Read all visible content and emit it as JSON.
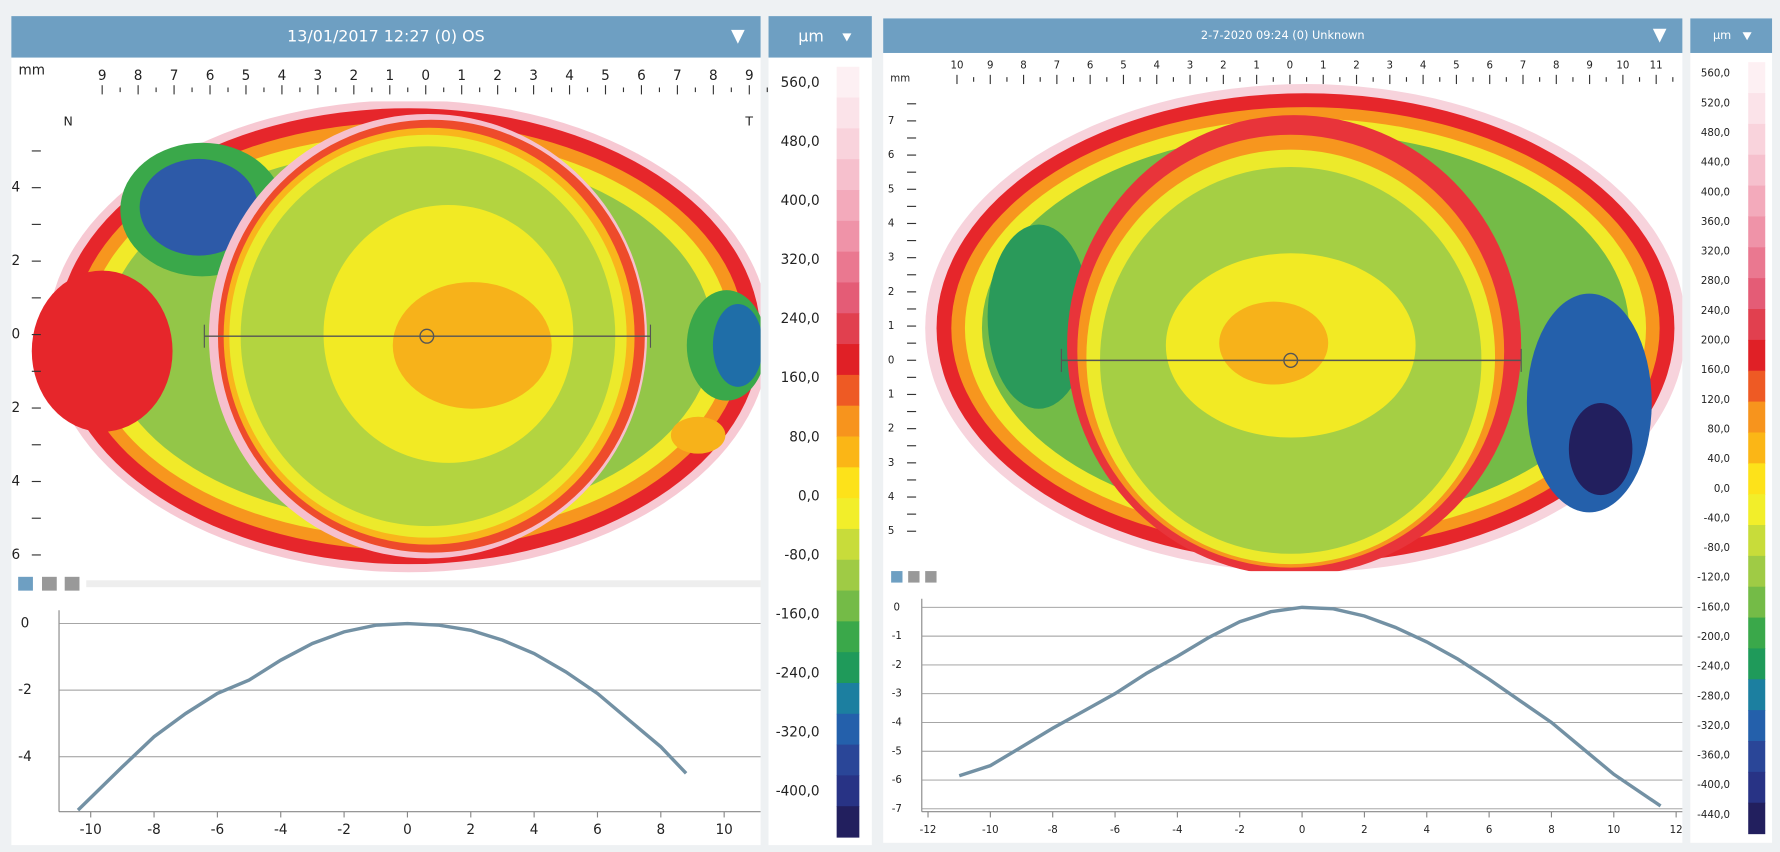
{
  "scale_colors": [
    "#fdf0f3",
    "#fbe3e9",
    "#f9d3dc",
    "#f6c0cd",
    "#f3aabb",
    "#ef93a8",
    "#ea7890",
    "#e45c76",
    "#e1404f",
    "#e02026",
    "#ee5a24",
    "#f7941d",
    "#fbb616",
    "#fde21a",
    "#f2ee2a",
    "#c8dc3a",
    "#9fcb45",
    "#74bb47",
    "#3aa84a",
    "#1f9a5a",
    "#1c7fa0",
    "#2460ab",
    "#2a4698",
    "#283385",
    "#221f5e"
  ],
  "panels": [
    {
      "title": "13/01/2017 12:27 (0) OS",
      "unit": "µm",
      "ruler_unit": "mm",
      "ruler_x": [
        "9",
        "8",
        "7",
        "6",
        "5",
        "4",
        "3",
        "2",
        "1",
        "0",
        "1",
        "2",
        "3",
        "4",
        "5",
        "6",
        "7",
        "8",
        "9"
      ],
      "ruler_y": [
        "4",
        "2",
        "0",
        "2",
        "4",
        "6"
      ],
      "side_labels": [
        "N",
        "T"
      ],
      "scale_labels": [
        "560,0",
        "480,0",
        "400,0",
        "320,0",
        "240,0",
        "160,0",
        "80,0",
        "0,0",
        "-80,0",
        "-160,0",
        "-240,0",
        "-320,0",
        "-400,0"
      ],
      "profile": {
        "type": "line",
        "x": [
          -10.4,
          -9,
          -8,
          -7,
          -6,
          -5,
          -4,
          -3,
          -2,
          -1,
          0,
          1,
          2,
          3,
          4,
          5,
          6,
          7,
          8,
          8.8
        ],
        "values": [
          -5.6,
          -4.3,
          -3.4,
          -2.7,
          -2.1,
          -1.7,
          -1.1,
          -0.6,
          -0.25,
          -0.05,
          0,
          -0.05,
          -0.2,
          -0.5,
          -0.9,
          -1.45,
          -2.1,
          -2.9,
          -3.7,
          -4.5
        ],
        "xlim": [
          -11,
          11.15
        ],
        "ylim": [
          -5.65,
          0.4
        ],
        "xticks": [
          -10,
          -8,
          -6,
          -4,
          -2,
          0,
          2,
          4,
          6,
          8,
          10
        ],
        "yticks": [
          0,
          -2,
          -4
        ],
        "color": "#7391a4"
      }
    },
    {
      "title": "2-7-2020 09:24 (0) Unknown",
      "unit": "µm",
      "ruler_unit": "mm",
      "ruler_x": [
        "10",
        "9",
        "8",
        "7",
        "6",
        "5",
        "4",
        "3",
        "2",
        "1",
        "0",
        "1",
        "2",
        "3",
        "4",
        "5",
        "6",
        "7",
        "8",
        "9",
        "10",
        "11"
      ],
      "ruler_y": [
        "7",
        "6",
        "5",
        "4",
        "3",
        "2",
        "1",
        "0",
        "1",
        "2",
        "3",
        "4",
        "5"
      ],
      "scale_labels": [
        "560,0",
        "520,0",
        "480,0",
        "440,0",
        "400,0",
        "360,0",
        "320,0",
        "280,0",
        "240,0",
        "200,0",
        "160,0",
        "120,0",
        "80,0",
        "40,0",
        "0,0",
        "-40,0",
        "-80,0",
        "-120,0",
        "-160,0",
        "-200,0",
        "-240,0",
        "-280,0",
        "-320,0",
        "-360,0",
        "-400,0",
        "-440,0"
      ],
      "profile": {
        "type": "line",
        "x": [
          -11,
          -10,
          -9,
          -8,
          -7,
          -6,
          -5,
          -4,
          -3,
          -2,
          -1,
          0,
          1,
          2,
          3,
          4,
          5,
          6,
          7,
          8,
          9,
          10,
          11.5
        ],
        "values": [
          -5.85,
          -5.5,
          -4.85,
          -4.2,
          -3.6,
          -3,
          -2.3,
          -1.7,
          -1.05,
          -0.5,
          -0.15,
          0,
          -0.05,
          -0.3,
          -0.7,
          -1.2,
          -1.8,
          -2.5,
          -3.25,
          -4,
          -4.9,
          -5.8,
          -6.9
        ],
        "xlim": [
          -12.2,
          12.2
        ],
        "ylim": [
          -7.1,
          0.3
        ],
        "xticks": [
          -12,
          -10,
          -8,
          -6,
          -4,
          -2,
          0,
          2,
          4,
          6,
          8,
          10,
          12
        ],
        "yticks": [
          0,
          -1,
          -2,
          -3,
          -4,
          -5,
          -6,
          -7
        ],
        "color": "#7391a4"
      }
    }
  ]
}
